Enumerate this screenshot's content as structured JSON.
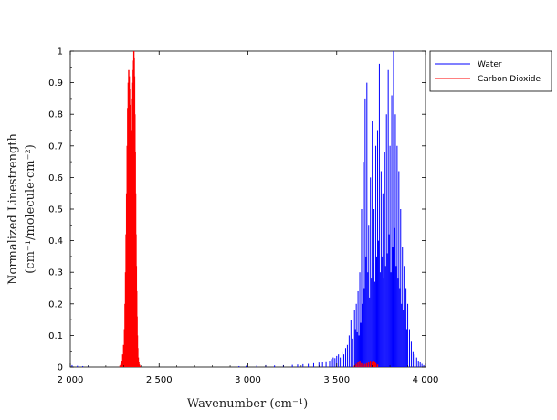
{
  "chart_data": {
    "type": "line",
    "title": "",
    "xlabel": "Wavenumber  (cm⁻¹)",
    "ylabel_line1": "Normalized Linestrength",
    "ylabel_line2": "(cm⁻¹/molecule·cm⁻²)",
    "xlim": [
      2000,
      4000
    ],
    "ylim": [
      0,
      1
    ],
    "grid": false,
    "legend_position": "outside-top-right",
    "x_ticks": [
      {
        "value": 2000,
        "label": "2 000"
      },
      {
        "value": 2500,
        "label": "2 500"
      },
      {
        "value": 3000,
        "label": "3 000"
      },
      {
        "value": 3500,
        "label": "3 500"
      },
      {
        "value": 4000,
        "label": "4 000"
      }
    ],
    "y_ticks": [
      {
        "value": 0,
        "label": "0"
      },
      {
        "value": 0.1,
        "label": "0.1"
      },
      {
        "value": 0.2,
        "label": "0.2"
      },
      {
        "value": 0.3,
        "label": "0.3"
      },
      {
        "value": 0.4,
        "label": "0.4"
      },
      {
        "value": 0.5,
        "label": "0.5"
      },
      {
        "value": 0.6,
        "label": "0.6"
      },
      {
        "value": 0.7,
        "label": "0.7"
      },
      {
        "value": 0.8,
        "label": "0.8"
      },
      {
        "value": 0.9,
        "label": "0.9"
      },
      {
        "value": 1,
        "label": "1"
      }
    ],
    "series": [
      {
        "name": "Water",
        "color": "#0000ff",
        "style": "sticks",
        "x": [
          2010,
          2040,
          2070,
          2100,
          2950,
          2990,
          3050,
          3100,
          3150,
          3200,
          3250,
          3280,
          3310,
          3340,
          3370,
          3400,
          3420,
          3440,
          3460,
          3470,
          3480,
          3490,
          3500,
          3510,
          3520,
          3530,
          3540,
          3550,
          3560,
          3570,
          3580,
          3590,
          3600,
          3605,
          3610,
          3615,
          3620,
          3625,
          3630,
          3635,
          3640,
          3645,
          3650,
          3655,
          3660,
          3665,
          3670,
          3675,
          3680,
          3685,
          3690,
          3695,
          3700,
          3705,
          3710,
          3715,
          3720,
          3725,
          3730,
          3735,
          3740,
          3745,
          3750,
          3755,
          3760,
          3765,
          3770,
          3775,
          3780,
          3785,
          3790,
          3795,
          3800,
          3805,
          3810,
          3815,
          3820,
          3825,
          3830,
          3835,
          3840,
          3845,
          3850,
          3855,
          3860,
          3865,
          3870,
          3875,
          3880,
          3885,
          3890,
          3895,
          3900,
          3910,
          3920,
          3930,
          3940,
          3950,
          3960,
          3970,
          3980,
          3990
        ],
        "y": [
          0.006,
          0.004,
          0.003,
          0.002,
          0.003,
          0.004,
          0.005,
          0.006,
          0.005,
          0.006,
          0.007,
          0.008,
          0.009,
          0.01,
          0.012,
          0.014,
          0.015,
          0.018,
          0.02,
          0.025,
          0.03,
          0.028,
          0.035,
          0.04,
          0.03,
          0.05,
          0.04,
          0.06,
          0.07,
          0.1,
          0.15,
          0.09,
          0.18,
          0.12,
          0.2,
          0.11,
          0.24,
          0.1,
          0.3,
          0.14,
          0.5,
          0.2,
          0.65,
          0.25,
          0.85,
          0.35,
          0.9,
          0.3,
          0.45,
          0.22,
          0.6,
          0.28,
          0.78,
          0.33,
          0.5,
          0.27,
          0.7,
          0.35,
          0.75,
          0.4,
          0.96,
          0.3,
          0.62,
          0.35,
          0.55,
          0.28,
          0.68,
          0.32,
          0.8,
          0.36,
          0.94,
          0.42,
          0.7,
          0.3,
          0.86,
          0.38,
          1.0,
          0.44,
          0.8,
          0.32,
          0.7,
          0.28,
          0.62,
          0.25,
          0.5,
          0.2,
          0.38,
          0.18,
          0.32,
          0.15,
          0.25,
          0.12,
          0.2,
          0.12,
          0.08,
          0.05,
          0.04,
          0.03,
          0.02,
          0.015,
          0.01,
          0.006
        ]
      },
      {
        "name": "Carbon Dioxide",
        "color": "#ff0000",
        "style": "sticks",
        "x": [
          2280,
          2285,
          2290,
          2295,
          2300,
          2305,
          2308,
          2311,
          2314,
          2317,
          2320,
          2323,
          2326,
          2329,
          2332,
          2334,
          2336,
          2338,
          2340,
          2342,
          2344,
          2346,
          2348,
          2350,
          2352,
          2354,
          2356,
          2358,
          2360,
          2362,
          2364,
          2366,
          2368,
          2370,
          2372,
          2374,
          2376,
          2378,
          2380,
          2383,
          2386,
          2389,
          2392,
          3600,
          3610,
          3620,
          3630,
          3640,
          3650,
          3660,
          3670,
          3680,
          3690,
          3700,
          3705,
          3710,
          3715,
          3720,
          3730
        ],
        "y": [
          0.005,
          0.01,
          0.02,
          0.04,
          0.07,
          0.12,
          0.2,
          0.3,
          0.42,
          0.55,
          0.7,
          0.82,
          0.9,
          0.94,
          0.92,
          0.88,
          0.83,
          0.76,
          0.6,
          0.3,
          0.05,
          0.6,
          0.75,
          0.85,
          0.9,
          0.94,
          0.97,
          1.0,
          0.98,
          0.92,
          0.8,
          0.68,
          0.55,
          0.42,
          0.32,
          0.24,
          0.16,
          0.1,
          0.06,
          0.03,
          0.015,
          0.008,
          0.004,
          0.005,
          0.01,
          0.015,
          0.02,
          0.012,
          0.008,
          0.01,
          0.012,
          0.015,
          0.02,
          0.018,
          0.016,
          0.02,
          0.015,
          0.012,
          0.008
        ]
      }
    ]
  }
}
